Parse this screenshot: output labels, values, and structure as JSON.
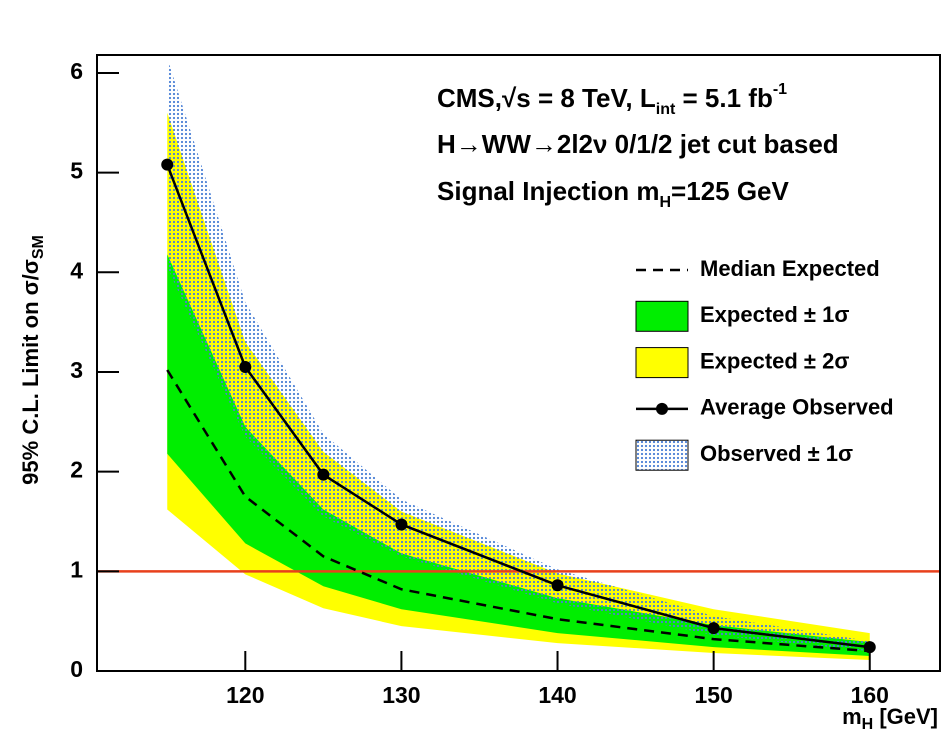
{
  "chart_data": {
    "type": "limit-bands",
    "ylabel": [
      "95% C.L. Limit on σ/σ",
      "SM"
    ],
    "xlabel": [
      "m",
      "H",
      " [GeV]"
    ],
    "annotations": [
      [
        "CMS,√s = 8 TeV, L",
        "int",
        " = 5.1 fb",
        "-1"
      ],
      [
        "H→WW→2l2ν 0/1/2 jet cut based"
      ],
      [
        "Signal Injection m",
        "H",
        "=125 GeV"
      ]
    ],
    "x": [
      115,
      120,
      125,
      130,
      140,
      150,
      160
    ],
    "series": [
      {
        "name": "Median Expected",
        "color": "#000000",
        "values": [
          3.02,
          1.75,
          1.15,
          0.82,
          0.52,
          0.32,
          0.2
        ],
        "dashed": true
      },
      {
        "name": "Expected ± 1σ",
        "color": "#00ee00",
        "lower": [
          2.18,
          1.28,
          0.85,
          0.62,
          0.38,
          0.24,
          0.15
        ],
        "upper": [
          4.18,
          2.45,
          1.62,
          1.18,
          0.73,
          0.46,
          0.29
        ]
      },
      {
        "name": "Expected ± 2σ",
        "color": "#ffff00",
        "lower": [
          1.62,
          0.97,
          0.63,
          0.45,
          0.28,
          0.18,
          0.11
        ],
        "upper": [
          5.6,
          3.3,
          2.2,
          1.6,
          0.98,
          0.62,
          0.38
        ]
      },
      {
        "name": "Average Observed",
        "color": "#000000",
        "values": [
          5.08,
          3.05,
          1.97,
          1.47,
          0.86,
          0.43,
          0.24
        ],
        "markers": true
      },
      {
        "name": "Observed ± 1σ",
        "color": "#4a7fd6",
        "lower": [
          4.05,
          2.35,
          1.55,
          1.15,
          0.68,
          0.36,
          0.2
        ],
        "upper": [
          6.15,
          3.7,
          2.38,
          1.72,
          1.02,
          0.55,
          0.3
        ],
        "dotted": true
      }
    ],
    "hline": {
      "value": 1,
      "color": "#e8401c"
    },
    "xlim": [
      110.5,
      164.5
    ],
    "xticks": [
      120,
      130,
      140,
      150,
      160
    ],
    "ylim": [
      0,
      6.18
    ],
    "yticks": [
      0,
      1,
      2,
      3,
      4,
      5,
      6
    ]
  }
}
